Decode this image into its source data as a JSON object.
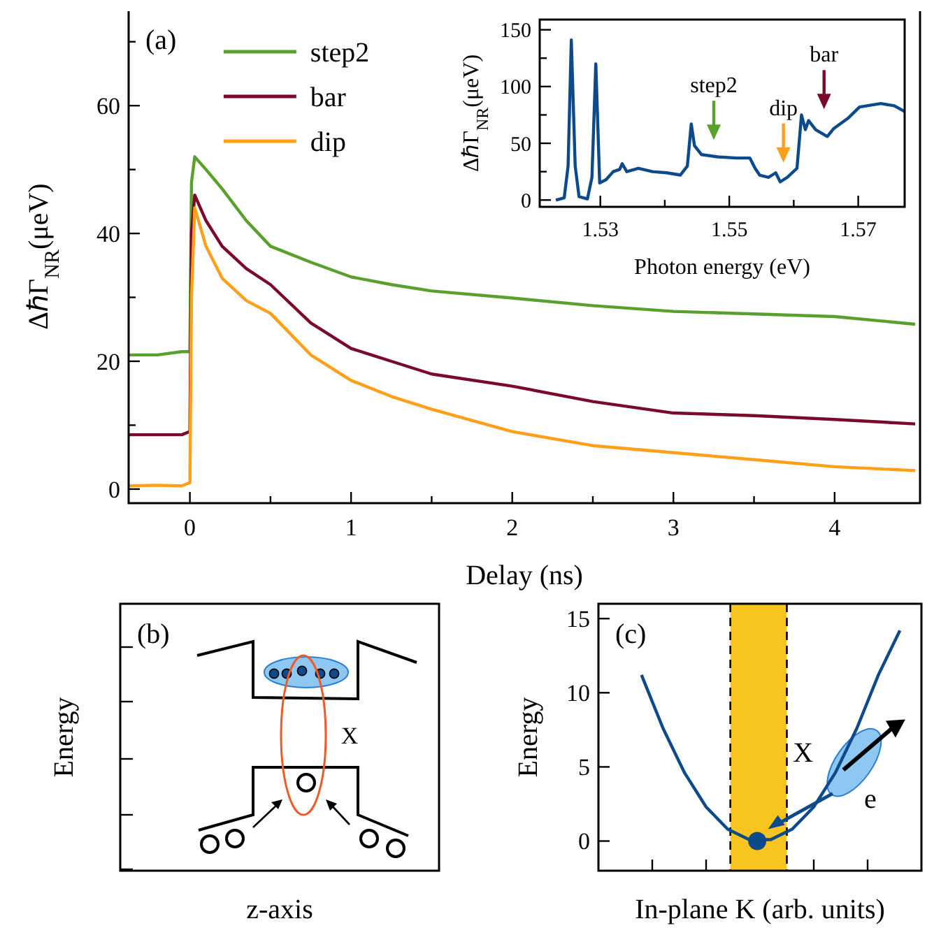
{
  "chart_data": [
    {
      "type": "line",
      "title": "(a)",
      "xlabel": "Delay (ns)",
      "ylabel": "ΔℏΓ$_{NR}$(μeV)",
      "xlim": [
        -0.38,
        4.53
      ],
      "ylim": [
        -2.2,
        75
      ],
      "xticks": [
        0,
        {
          "value": 0.5,
          "label": null
        },
        1,
        {
          "value": 1.5,
          "label": null
        },
        2,
        {
          "value": 2.5,
          "label": null
        },
        3,
        {
          "value": 3.5,
          "label": null
        },
        4
      ],
      "yticks": [
        0,
        {
          "value": 10,
          "label": null
        },
        20,
        {
          "value": 30,
          "label": null
        },
        40,
        {
          "value": 50,
          "label": null
        },
        60,
        {
          "value": 70,
          "label": null
        }
      ],
      "legend": "top left",
      "line_style": "solid",
      "marker": "none",
      "series": [
        {
          "name": "step2",
          "color": "#5aa02c",
          "x": [
            -0.38,
            -0.2,
            -0.05,
            0,
            0.01,
            0.03,
            0.1,
            0.2,
            0.35,
            0.5,
            0.75,
            1,
            1.25,
            1.5,
            2,
            2.5,
            3,
            3.5,
            4,
            4.5
          ],
          "values": [
            21,
            21,
            21.5,
            21.5,
            48,
            52,
            50,
            47,
            42,
            38,
            35.5,
            33.2,
            32,
            31,
            29.9,
            28.7,
            27.8,
            27.4,
            27,
            25.8
          ]
        },
        {
          "name": "bar",
          "color": "#7b0a2a",
          "x": [
            -0.38,
            -0.2,
            -0.05,
            0,
            0.01,
            0.03,
            0.1,
            0.2,
            0.35,
            0.5,
            0.75,
            1,
            1.25,
            1.5,
            2,
            2.5,
            3,
            3.5,
            4,
            4.5
          ],
          "values": [
            8.5,
            8.5,
            8.5,
            9,
            40,
            46,
            42,
            38,
            34.5,
            32,
            26,
            22,
            20,
            18,
            16.1,
            13.7,
            11.9,
            11.5,
            10.9,
            10.2
          ]
        },
        {
          "name": "dip",
          "color": "#ff9f1a",
          "x": [
            -0.38,
            -0.2,
            -0.05,
            0,
            0.01,
            0.03,
            0.1,
            0.2,
            0.35,
            0.5,
            0.75,
            1,
            1.25,
            1.5,
            2,
            2.5,
            3,
            3.5,
            4,
            4.5
          ],
          "values": [
            0.5,
            0.6,
            0.5,
            1,
            30,
            44,
            38,
            33,
            29.5,
            27.5,
            21,
            17,
            14.5,
            12.5,
            9,
            6.8,
            5.7,
            4.6,
            3.5,
            2.9
          ]
        }
      ]
    },
    {
      "type": "line",
      "xlabel": "Photon energy (eV)",
      "ylabel": "ΔℏΓ$_{NR}$(μeV)",
      "xlim": [
        1.5206,
        1.5772
      ],
      "ylim": [
        -6,
        159
      ],
      "xticks": [
        1.53,
        {
          "value": 1.54,
          "label": null
        },
        1.55,
        {
          "value": 1.56,
          "label": null
        },
        1.57
      ],
      "yticks": [
        0,
        {
          "value": 25,
          "label": null
        },
        50,
        {
          "value": 75,
          "label": null
        },
        100,
        {
          "value": 125,
          "label": null
        },
        150
      ],
      "line_style": "solid",
      "marker": "none",
      "annotations": [
        "step2",
        "dip",
        "bar"
      ],
      "series": [
        {
          "color": "#0c4a8c",
          "x": [
            1.5231,
            1.5244,
            1.525,
            1.5255,
            1.5261,
            1.5267,
            1.528,
            1.5287,
            1.5293,
            1.5299,
            1.5309,
            1.532,
            1.533,
            1.5334,
            1.5341,
            1.5359,
            1.5381,
            1.5403,
            1.5424,
            1.5435,
            1.5441,
            1.5446,
            1.5457,
            1.5482,
            1.5511,
            1.5532,
            1.554,
            1.5547,
            1.5561,
            1.5572,
            1.5579,
            1.559,
            1.5605,
            1.5612,
            1.5618,
            1.5623,
            1.5634,
            1.5652,
            1.5662,
            1.5684,
            1.5702,
            1.5735,
            1.5756,
            1.5772
          ],
          "values": [
            0,
            2,
            30,
            141,
            30,
            3,
            1,
            20,
            120,
            15,
            18,
            25,
            27,
            32,
            25,
            28,
            25,
            24,
            22,
            30,
            67,
            48,
            40,
            38,
            37,
            37,
            28,
            22,
            20,
            24,
            16,
            20,
            28,
            75,
            62,
            70,
            62,
            56,
            63,
            72,
            82,
            85,
            83,
            78
          ]
        }
      ]
    },
    {
      "type": "other",
      "title": "(b)",
      "xlabel": "z-axis",
      "ylabel": "Energy",
      "annotations": [
        "X"
      ]
    },
    {
      "type": "line",
      "title": "(c)",
      "xlabel": "In-plane K (arb. units)",
      "ylabel": "Energy",
      "categories": [
        null,
        null,
        null,
        null,
        null,
        null,
        null,
        null,
        null,
        null,
        null,
        null,
        null
      ],
      "ylim": [
        -2,
        16
      ],
      "yticks": [
        0,
        5,
        10,
        15
      ],
      "line_style": "solid",
      "marker": "none",
      "annotations": [
        "X",
        "e"
      ],
      "series": [
        {
          "color": "#0c4a8c",
          "values": [
            11.2,
            7.6,
            4.6,
            2.3,
            0.8,
            0.1,
            0.1,
            0.8,
            2.3,
            4.6,
            7.6,
            11.2,
            14.2
          ]
        }
      ]
    }
  ]
}
